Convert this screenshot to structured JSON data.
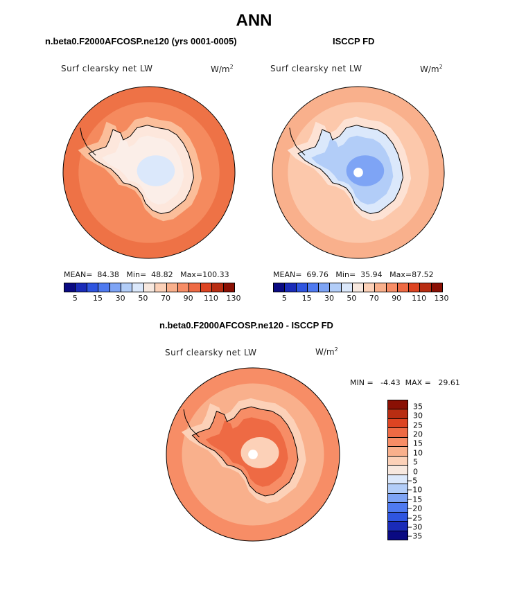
{
  "page_title": "ANN",
  "chart_data": [
    {
      "type": "heatmap",
      "projection": "south-polar-stereographic",
      "subtitle": "n.beta0.F2000AFCOSP.ne120 (yrs 0001-0005)",
      "variable_label": "Surf clearsky net LW",
      "units": "W/m",
      "units_exp": "2",
      "mean_label": "MEAN=",
      "mean": "84.38",
      "min_label": "Min=",
      "min": "48.82",
      "max_label": "Max=",
      "max": "100.33",
      "colorbar_ticks": [
        "5",
        "15",
        "30",
        "50",
        "70",
        "90",
        "110",
        "130"
      ],
      "colorbar_colors": [
        "#0a0a82",
        "#1a2bb8",
        "#2f55e0",
        "#4f7af0",
        "#7ea4f5",
        "#b2cdf8",
        "#dbe8fb",
        "#f7e8df",
        "#fcd1b8",
        "#f9b08c",
        "#f78d66",
        "#ee6a44",
        "#dd4422",
        "#b82d12",
        "#8a1004"
      ],
      "field": {
        "ocean": "#f58a5e",
        "ocean_outer": "#ee7246",
        "coast_band": "#fbbe9a",
        "land_edge": "#fde7dc",
        "interior": "#fbeee8",
        "plateau": "#dbe8fb",
        "pole_hole": false
      }
    },
    {
      "type": "heatmap",
      "projection": "south-polar-stereographic",
      "subtitle": "ISCCP FD",
      "variable_label": "Surf clearsky net LW",
      "units": "W/m",
      "units_exp": "2",
      "mean_label": "MEAN=",
      "mean": "69.76",
      "min_label": "Min=",
      "min": "35.94",
      "max_label": "Max=",
      "max": "87.52",
      "colorbar_ticks": [
        "5",
        "15",
        "30",
        "50",
        "70",
        "90",
        "110",
        "130"
      ],
      "colorbar_colors": [
        "#0a0a82",
        "#1a2bb8",
        "#2f55e0",
        "#4f7af0",
        "#7ea4f5",
        "#b2cdf8",
        "#dbe8fb",
        "#f7e8df",
        "#fcd1b8",
        "#f9b08c",
        "#f78d66",
        "#ee6a44",
        "#dd4422",
        "#b82d12",
        "#8a1004"
      ],
      "field": {
        "ocean": "#fcc8ab",
        "ocean_outer": "#f9b08c",
        "coast_band": "#fde2d4",
        "land_edge": "#dbe8fb",
        "interior": "#b2cdf8",
        "plateau": "#7ea4f5",
        "pole_hole": true
      }
    },
    {
      "type": "heatmap",
      "projection": "south-polar-stereographic",
      "subtitle": "n.beta0.F2000AFCOSP.ne120 - ISCCP FD",
      "variable_label": "Surf clearsky net LW",
      "units": "W/m",
      "units_exp": "2",
      "minmax_text": "MIN =   -4.43  MAX =   29.61",
      "colorbar_levels": [
        "35",
        "30",
        "25",
        "20",
        "15",
        "10",
        "5",
        "0",
        "−5",
        "−10",
        "−15",
        "−20",
        "−25",
        "−30",
        "−35"
      ],
      "colorbar_colors": [
        "#8a1004",
        "#b82d12",
        "#dd4422",
        "#ee6a44",
        "#f78d66",
        "#f9b08c",
        "#fcd1b8",
        "#f7e8df",
        "#dbe8fb",
        "#b2cdf8",
        "#7ea4f5",
        "#4f7af0",
        "#2f55e0",
        "#1a2bb8",
        "#0a0a82"
      ],
      "field": {
        "ocean": "#f9b08c",
        "ocean_outer": "#f78d66",
        "coast_band": "#fcd1b8",
        "land_edge": "#f78d66",
        "interior": "#ee6a44",
        "plateau": "#fcd1b8",
        "pole_hole": true
      }
    }
  ]
}
